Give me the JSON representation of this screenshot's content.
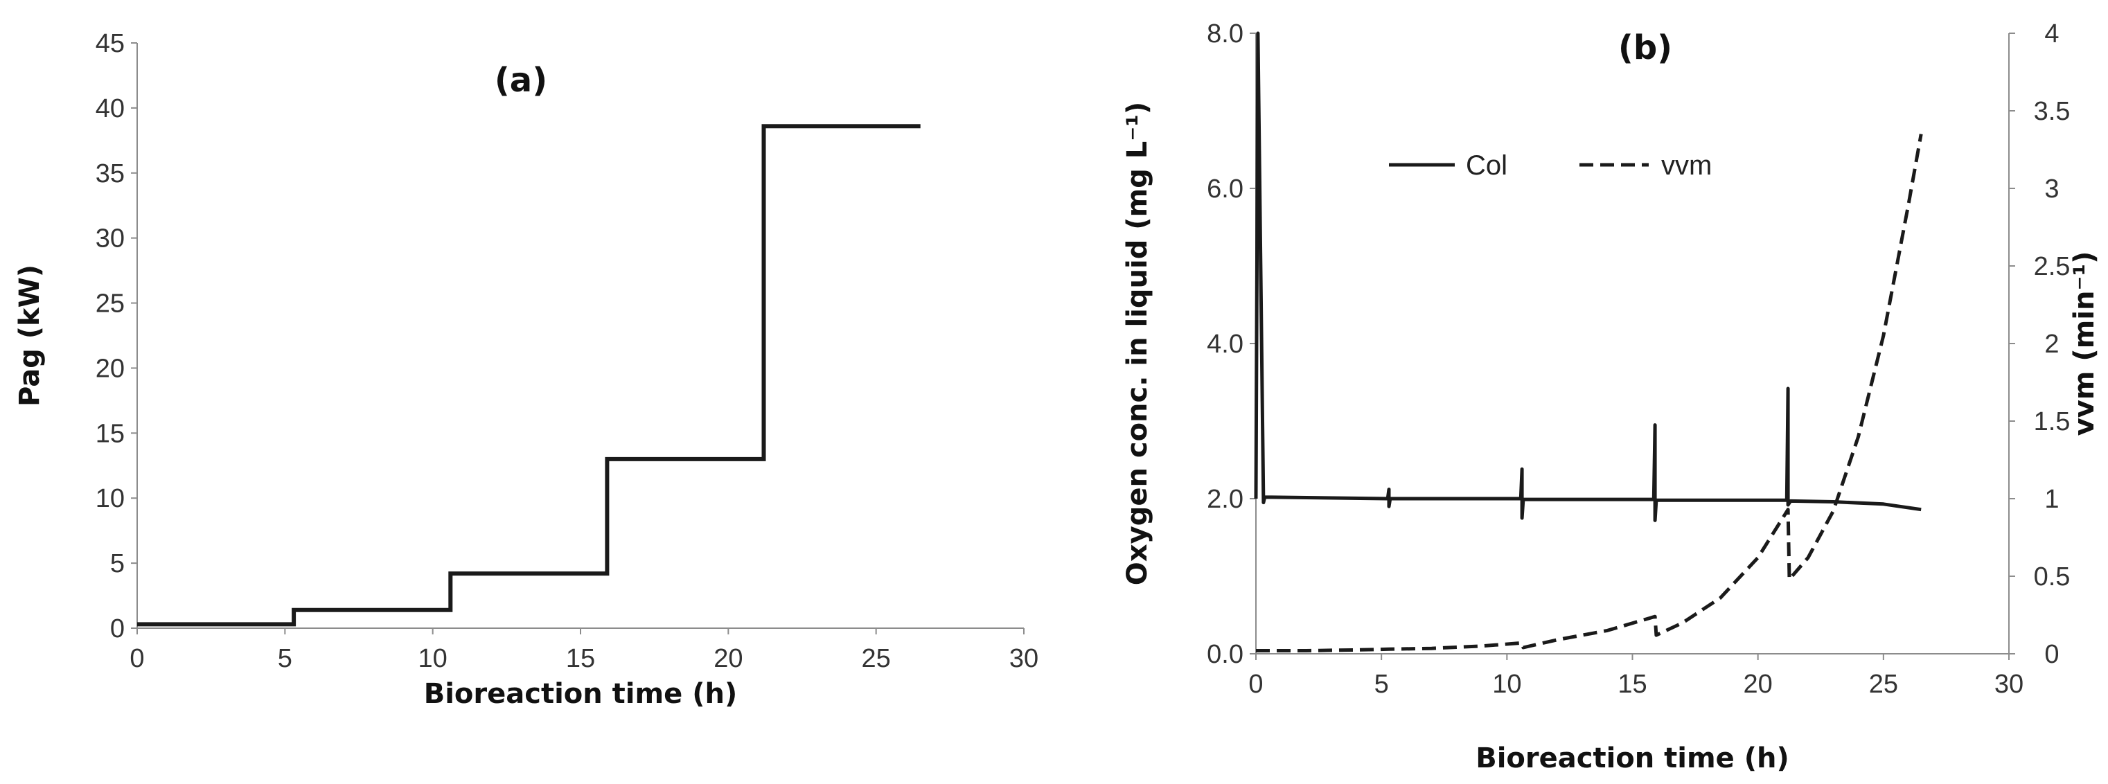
{
  "chart_data": [
    {
      "type": "line",
      "panel_label": "(a)",
      "xlabel": "Bioreaction time (h)",
      "ylabel": "Pag (kW)",
      "xlim": [
        0,
        30
      ],
      "ylim": [
        0,
        45
      ],
      "xticks": [
        0,
        5,
        10,
        15,
        20,
        25,
        30
      ],
      "yticks": [
        0,
        5,
        10,
        15,
        20,
        25,
        30,
        35,
        40,
        45
      ],
      "grid": false,
      "step": true,
      "series": [
        {
          "x": [
            0,
            5.3,
            5.3,
            10.6,
            10.6,
            15.9,
            15.9,
            21.2,
            21.2,
            26.5
          ],
          "y": [
            0.3,
            0.3,
            1.4,
            1.4,
            4.2,
            4.2,
            13.0,
            13.0,
            38.6,
            38.6
          ],
          "color": "#1a1a1a",
          "style": "solid"
        }
      ]
    },
    {
      "type": "line",
      "panel_label": "(b)",
      "xlabel": "Bioreaction time (h)",
      "ylabel": "Oxygen conc. in liquid (mg L⁻¹)",
      "y2label": "vvm (min⁻¹)",
      "xlim": [
        0,
        30
      ],
      "ylim": [
        0,
        8
      ],
      "y2lim": [
        0,
        4
      ],
      "xticks": [
        0,
        5,
        10,
        15,
        20,
        25,
        30
      ],
      "yticks": [
        "0.0",
        "2.0",
        "4.0",
        "6.0",
        "8.0"
      ],
      "y2ticks": [
        "0",
        "0.5",
        "1",
        "1.5",
        "2",
        "2.5",
        "3",
        "3.5",
        "4"
      ],
      "grid": false,
      "legend_position": "top-center",
      "series": [
        {
          "name": "Col",
          "axis": "left",
          "style": "solid",
          "color": "#1a1a1a",
          "x": [
            0,
            0.08,
            0.3,
            0.35,
            5.25,
            5.3,
            5.3,
            5.35,
            10.55,
            10.6,
            10.6,
            10.65,
            15.85,
            15.9,
            15.9,
            15.95,
            21.15,
            21.2,
            21.2,
            21.3,
            23,
            25,
            26.5
          ],
          "y": [
            2.0,
            8.0,
            1.95,
            2.02,
            2.0,
            2.12,
            1.9,
            2.0,
            2.0,
            2.38,
            1.75,
            1.99,
            1.99,
            2.95,
            1.72,
            1.98,
            1.98,
            3.42,
            1.92,
            1.97,
            1.96,
            1.93,
            1.86
          ]
        },
        {
          "name": "vvm",
          "axis": "right",
          "style": "dashed",
          "color": "#1a1a1a",
          "x": [
            0,
            2,
            4,
            5.3,
            7,
            9,
            10.6,
            10.65,
            12,
            14,
            15.9,
            15.95,
            17,
            18.5,
            20,
            21.2,
            21.25,
            22,
            23,
            24,
            25,
            26,
            26.5
          ],
          "y": [
            0.02,
            0.02,
            0.025,
            0.03,
            0.035,
            0.05,
            0.07,
            0.04,
            0.09,
            0.15,
            0.24,
            0.12,
            0.2,
            0.36,
            0.62,
            0.93,
            0.48,
            0.62,
            0.92,
            1.4,
            2.05,
            2.9,
            3.35
          ]
        }
      ]
    }
  ]
}
